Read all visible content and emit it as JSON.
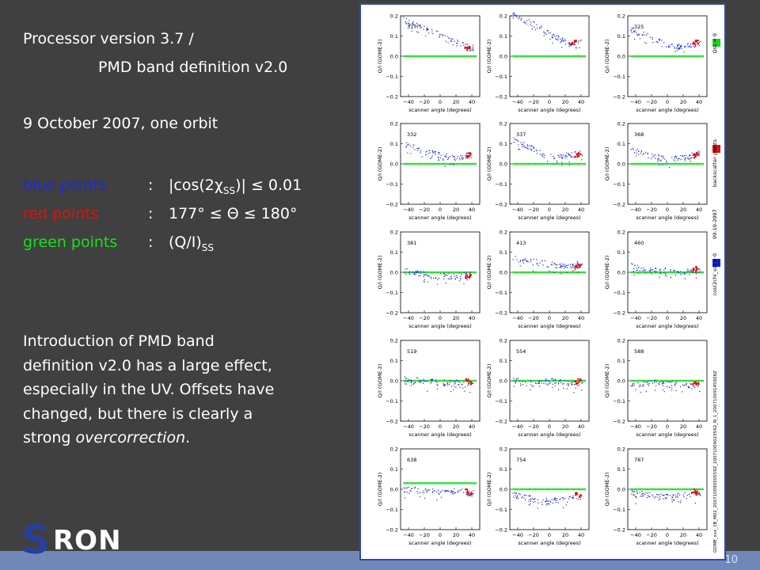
{
  "slide": {
    "line1": "Processor version 3.7 /",
    "line2": "PMD band definition v2.0",
    "line3": "9 October 2007, one orbit",
    "legend": [
      {
        "label": "blue points",
        "color": "#1e2bd6",
        "colon": ":",
        "value": "|cos(2χ",
        "sub": "SS",
        "value_after": ")| ≤ 0.01"
      },
      {
        "label": "red points",
        "color": "#e01010",
        "colon": ":",
        "value": "177° ≤ Θ ≤ 180°",
        "sub": "",
        "value_after": ""
      },
      {
        "label": "green points",
        "color": "#18e018",
        "colon": ":",
        "value": "(Q/I)",
        "sub": "SS",
        "value_after": ""
      }
    ],
    "paragraph": [
      "Introduction of PMD band",
      "definition v2.0 has a large effect,",
      "especially in the UV. Offsets have",
      "changed, but there is clearly a"
    ],
    "paragraph_last_prefix": "strong ",
    "paragraph_last_emph": "overcorrection",
    "paragraph_last_suffix": ".",
    "logo_s": "S",
    "logo_ron": "RON",
    "page_number": "10"
  },
  "figure": {
    "ylabel": "Q/I (GOME-2)",
    "xlabel": "scanner angle (degrees)",
    "xticks": [
      "−40",
      "−20",
      "0",
      "20",
      "40"
    ],
    "yticks": [
      "0.2",
      "0.1",
      "0.0",
      "−0.1",
      "−0.2"
    ],
    "legend_labels": [
      "Qss = 0",
      "backscatter points",
      "cos(2chi_ss) = 0"
    ],
    "legend_colors": [
      "#20d020",
      "#e01010",
      "#1020d0"
    ],
    "date_label": "09-10-2007",
    "file_label": "GOME_xxx_1B_M02_20071009050559Z_20071009023592_N_1_20071009145928Z",
    "panel_ids": [
      "317",
      "",
      "325",
      "332",
      "337",
      "368",
      "381",
      "413",
      "460",
      "519",
      "554",
      "588",
      "638",
      "754",
      "787"
    ]
  },
  "chart_data": {
    "type": "scatter",
    "title": "",
    "xlabel": "scanner angle (degrees)",
    "ylabel": "Q/I (GOME-2)",
    "xlim": [
      -50,
      50
    ],
    "ylim": [
      -0.2,
      0.2
    ],
    "panels": [
      {
        "id": "317",
        "blue": [
          [
            -45,
            0.18
          ],
          [
            -30,
            0.15
          ],
          [
            -10,
            0.12
          ],
          [
            10,
            0.09
          ],
          [
            30,
            0.05
          ],
          [
            42,
            0.04
          ]
        ],
        "red": [
          [
            33,
            0.035
          ],
          [
            37,
            0.04
          ]
        ],
        "green": 0.0
      },
      {
        "id": "",
        "blue": [
          [
            -45,
            0.2
          ],
          [
            -20,
            0.16
          ],
          [
            0,
            0.11
          ],
          [
            20,
            0.07
          ],
          [
            30,
            0.05
          ],
          [
            40,
            0.07
          ]
        ],
        "red": [
          [
            28,
            0.06
          ],
          [
            32,
            0.07
          ]
        ],
        "green": 0.0
      },
      {
        "id": "325",
        "blue": [
          [
            -45,
            0.13
          ],
          [
            -20,
            0.09
          ],
          [
            0,
            0.06
          ],
          [
            20,
            0.04
          ],
          [
            40,
            0.07
          ]
        ],
        "red": [
          [
            34,
            0.065
          ],
          [
            38,
            0.07
          ]
        ],
        "green": 0.0
      },
      {
        "id": "332",
        "blue": [
          [
            -45,
            0.1
          ],
          [
            -20,
            0.06
          ],
          [
            0,
            0.04
          ],
          [
            20,
            0.03
          ],
          [
            40,
            0.05
          ]
        ],
        "red": [
          [
            34,
            0.04
          ],
          [
            38,
            0.045
          ]
        ],
        "green": 0.0
      },
      {
        "id": "337",
        "blue": [
          [
            -45,
            0.12
          ],
          [
            -20,
            0.07
          ],
          [
            0,
            0.04
          ],
          [
            20,
            0.04
          ],
          [
            40,
            0.05
          ]
        ],
        "red": [
          [
            34,
            0.04
          ],
          [
            38,
            0.05
          ]
        ],
        "green": 0.0
      },
      {
        "id": "368",
        "blue": [
          [
            -45,
            0.07
          ],
          [
            -20,
            0.04
          ],
          [
            0,
            0.02
          ],
          [
            20,
            0.03
          ],
          [
            40,
            0.05
          ]
        ],
        "red": [
          [
            34,
            0.04
          ],
          [
            38,
            0.045
          ]
        ],
        "green": 0.0
      },
      {
        "id": "381",
        "blue": [
          [
            -45,
            0.01
          ],
          [
            -20,
            -0.01
          ],
          [
            0,
            -0.02
          ],
          [
            20,
            -0.02
          ],
          [
            40,
            -0.01
          ]
        ],
        "red": [
          [
            34,
            -0.02
          ],
          [
            38,
            -0.02
          ]
        ],
        "green": 0.0
      },
      {
        "id": "413",
        "blue": [
          [
            -45,
            0.07
          ],
          [
            -20,
            0.05
          ],
          [
            0,
            0.04
          ],
          [
            20,
            0.03
          ],
          [
            40,
            0.04
          ]
        ],
        "red": [
          [
            34,
            0.03
          ],
          [
            38,
            0.035
          ]
        ],
        "green": 0.0
      },
      {
        "id": "460",
        "blue": [
          [
            -45,
            0.03
          ],
          [
            -20,
            0.01
          ],
          [
            0,
            0.01
          ],
          [
            20,
            0.0
          ],
          [
            40,
            0.02
          ]
        ],
        "red": [
          [
            34,
            0.01
          ],
          [
            38,
            0.015
          ]
        ],
        "green": 0.0
      },
      {
        "id": "519",
        "blue": [
          [
            -45,
            0.01
          ],
          [
            -20,
            0.0
          ],
          [
            0,
            -0.01
          ],
          [
            20,
            -0.01
          ],
          [
            40,
            -0.02
          ]
        ],
        "red": [
          [
            34,
            0.0
          ],
          [
            38,
            -0.01
          ]
        ],
        "green": 0.0
      },
      {
        "id": "554",
        "blue": [
          [
            -45,
            0.0
          ],
          [
            -20,
            -0.01
          ],
          [
            0,
            0.0
          ],
          [
            20,
            -0.01
          ],
          [
            40,
            -0.01
          ]
        ],
        "red": [
          [
            34,
            -0.01
          ],
          [
            38,
            0.0
          ]
        ],
        "green": 0.0
      },
      {
        "id": "588",
        "blue": [
          [
            -45,
            -0.02
          ],
          [
            -20,
            -0.01
          ],
          [
            0,
            -0.01
          ],
          [
            20,
            -0.02
          ],
          [
            40,
            -0.02
          ]
        ],
        "red": [
          [
            34,
            -0.01
          ],
          [
            38,
            -0.02
          ]
        ],
        "green": 0.0
      },
      {
        "id": "638",
        "blue": [
          [
            -45,
            0.0
          ],
          [
            -20,
            -0.01
          ],
          [
            0,
            -0.01
          ],
          [
            20,
            -0.01
          ],
          [
            40,
            -0.02
          ]
        ],
        "red": [
          [
            34,
            -0.01
          ],
          [
            38,
            -0.02
          ]
        ],
        "green": 0.03
      },
      {
        "id": "754",
        "blue": [
          [
            -45,
            -0.03
          ],
          [
            -20,
            -0.05
          ],
          [
            0,
            -0.06
          ],
          [
            20,
            -0.05
          ],
          [
            40,
            -0.04
          ]
        ],
        "red": [
          [
            34,
            -0.02
          ],
          [
            38,
            -0.03
          ]
        ],
        "green": 0.0
      },
      {
        "id": "787",
        "blue": [
          [
            -45,
            -0.02
          ],
          [
            -20,
            -0.03
          ],
          [
            0,
            -0.04
          ],
          [
            20,
            -0.03
          ],
          [
            40,
            -0.02
          ]
        ],
        "red": [
          [
            34,
            -0.01
          ],
          [
            38,
            -0.02
          ]
        ],
        "green": 0.0
      }
    ]
  }
}
